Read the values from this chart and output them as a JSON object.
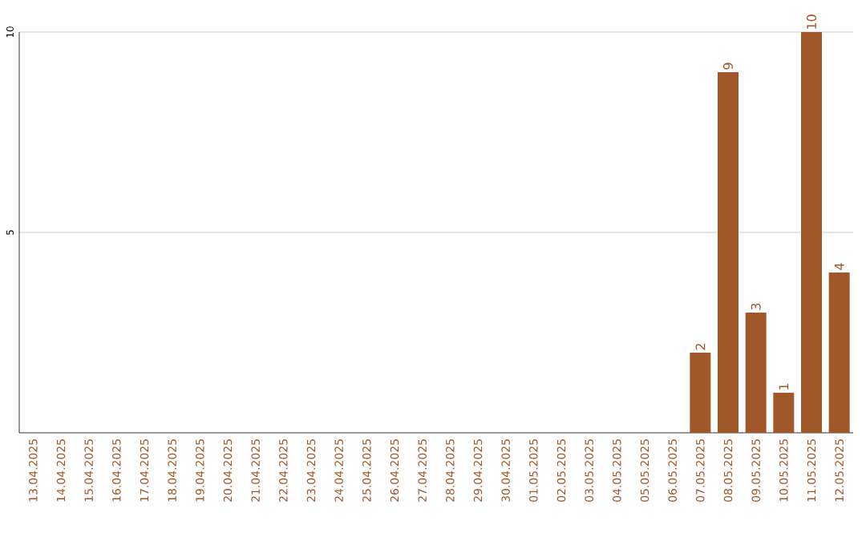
{
  "chart_data": {
    "type": "bar",
    "categories": [
      "13.04.2025",
      "14.04.2025",
      "15.04.2025",
      "16.04.2025",
      "17.04.2025",
      "18.04.2025",
      "19.04.2025",
      "20.04.2025",
      "21.04.2025",
      "22.04.2025",
      "23.04.2025",
      "24.04.2025",
      "25.04.2025",
      "26.04.2025",
      "27.04.2025",
      "28.04.2025",
      "29.04.2025",
      "30.04.2025",
      "01.05.2025",
      "02.05.2025",
      "03.05.2025",
      "04.05.2025",
      "05.05.2025",
      "06.05.2025",
      "07.05.2025",
      "08.05.2025",
      "09.05.2025",
      "10.05.2025",
      "11.05.2025",
      "12.05.2025"
    ],
    "values": [
      0,
      0,
      0,
      0,
      0,
      0,
      0,
      0,
      0,
      0,
      0,
      0,
      0,
      0,
      0,
      0,
      0,
      0,
      0,
      0,
      0,
      0,
      0,
      0,
      2,
      9,
      3,
      1,
      10,
      4
    ],
    "value_labels": [
      null,
      null,
      null,
      null,
      null,
      null,
      null,
      null,
      null,
      null,
      null,
      null,
      null,
      null,
      null,
      null,
      null,
      null,
      null,
      null,
      null,
      null,
      null,
      null,
      "2",
      "9",
      "3",
      "1",
      "10",
      "4"
    ],
    "color": "#a0582a",
    "ylim": [
      0,
      10
    ],
    "yticks": [
      5,
      10
    ],
    "grid": "y"
  }
}
